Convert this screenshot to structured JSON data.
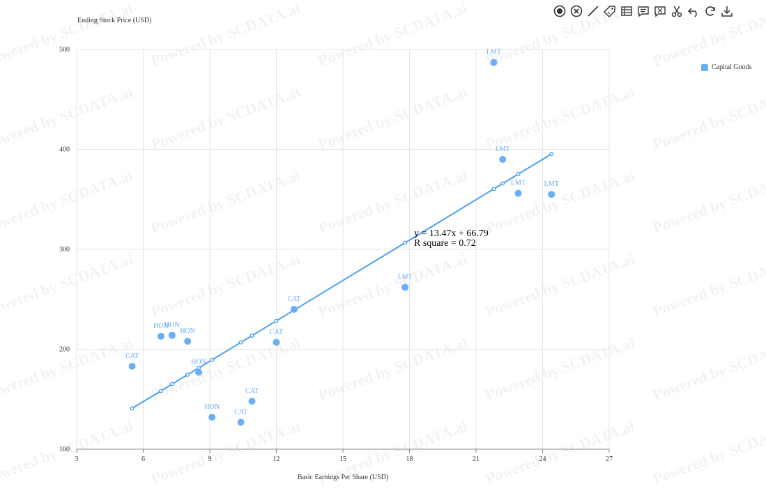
{
  "watermark": "Powered by SCDATA.ai",
  "colors": {
    "series": "#6aaef5",
    "trend": "#4a9ff0",
    "grid": "#e6e6e6",
    "axis": "#888888",
    "text": "#333333",
    "icon": "#333333"
  },
  "toolbar": {
    "icons": [
      "target-icon",
      "close-circle-icon",
      "line-draw-icon",
      "tag-icon",
      "table-icon",
      "comment-icon",
      "annotation-icon",
      "scissors-icon",
      "undo-icon",
      "refresh-icon",
      "download-icon"
    ]
  },
  "legend": {
    "label": "Capital Goods"
  },
  "chart_data": {
    "type": "scatter",
    "xlabel": "Basic Earnings Per Share (USD)",
    "ylabel": "Ending Stock Price (USD)",
    "xlim": [
      3,
      27
    ],
    "ylim": [
      100,
      500
    ],
    "xticks": [
      3,
      6,
      9,
      12,
      15,
      18,
      21,
      24,
      27
    ],
    "yticks": [
      100,
      200,
      300,
      400,
      500
    ],
    "grid": true,
    "legend_position": "right",
    "series": [
      {
        "name": "Capital Goods",
        "points": [
          {
            "label": "LMT",
            "x": 21.8,
            "y": 487
          },
          {
            "label": "LMT",
            "x": 22.2,
            "y": 390
          },
          {
            "label": "LMT",
            "x": 22.9,
            "y": 356
          },
          {
            "label": "LMT",
            "x": 24.4,
            "y": 355
          },
          {
            "label": "LMT",
            "x": 17.8,
            "y": 262
          },
          {
            "label": "CAT",
            "x": 12.8,
            "y": 240
          },
          {
            "label": "CAT",
            "x": 12.0,
            "y": 207
          },
          {
            "label": "CAT",
            "x": 5.5,
            "y": 183
          },
          {
            "label": "CAT",
            "x": 10.9,
            "y": 148
          },
          {
            "label": "CAT",
            "x": 10.4,
            "y": 127
          },
          {
            "label": "HON",
            "x": 6.8,
            "y": 213
          },
          {
            "label": "HON",
            "x": 7.3,
            "y": 214
          },
          {
            "label": "HON",
            "x": 8.0,
            "y": 208
          },
          {
            "label": "HON",
            "x": 8.5,
            "y": 177
          },
          {
            "label": "HON",
            "x": 9.1,
            "y": 132
          }
        ]
      }
    ],
    "trendline": {
      "equation": "y = 13.47x + 66.79",
      "r_square": "R square = 0.72",
      "slope": 13.47,
      "intercept": 66.79,
      "x_values": [
        5.5,
        6.8,
        7.3,
        8.0,
        8.5,
        9.1,
        10.4,
        10.9,
        12.0,
        12.8,
        17.8,
        21.8,
        22.2,
        22.9,
        24.4
      ],
      "label_at_x": 17.8
    }
  }
}
